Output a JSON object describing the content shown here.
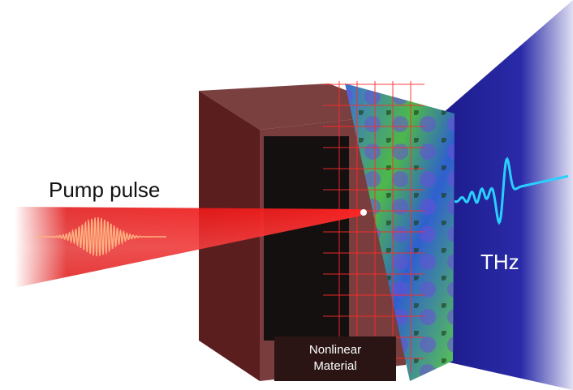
{
  "labels": {
    "pump": "Pump pulse",
    "thz": "THz",
    "material": [
      "Nonlinear",
      "Material"
    ]
  }
}
